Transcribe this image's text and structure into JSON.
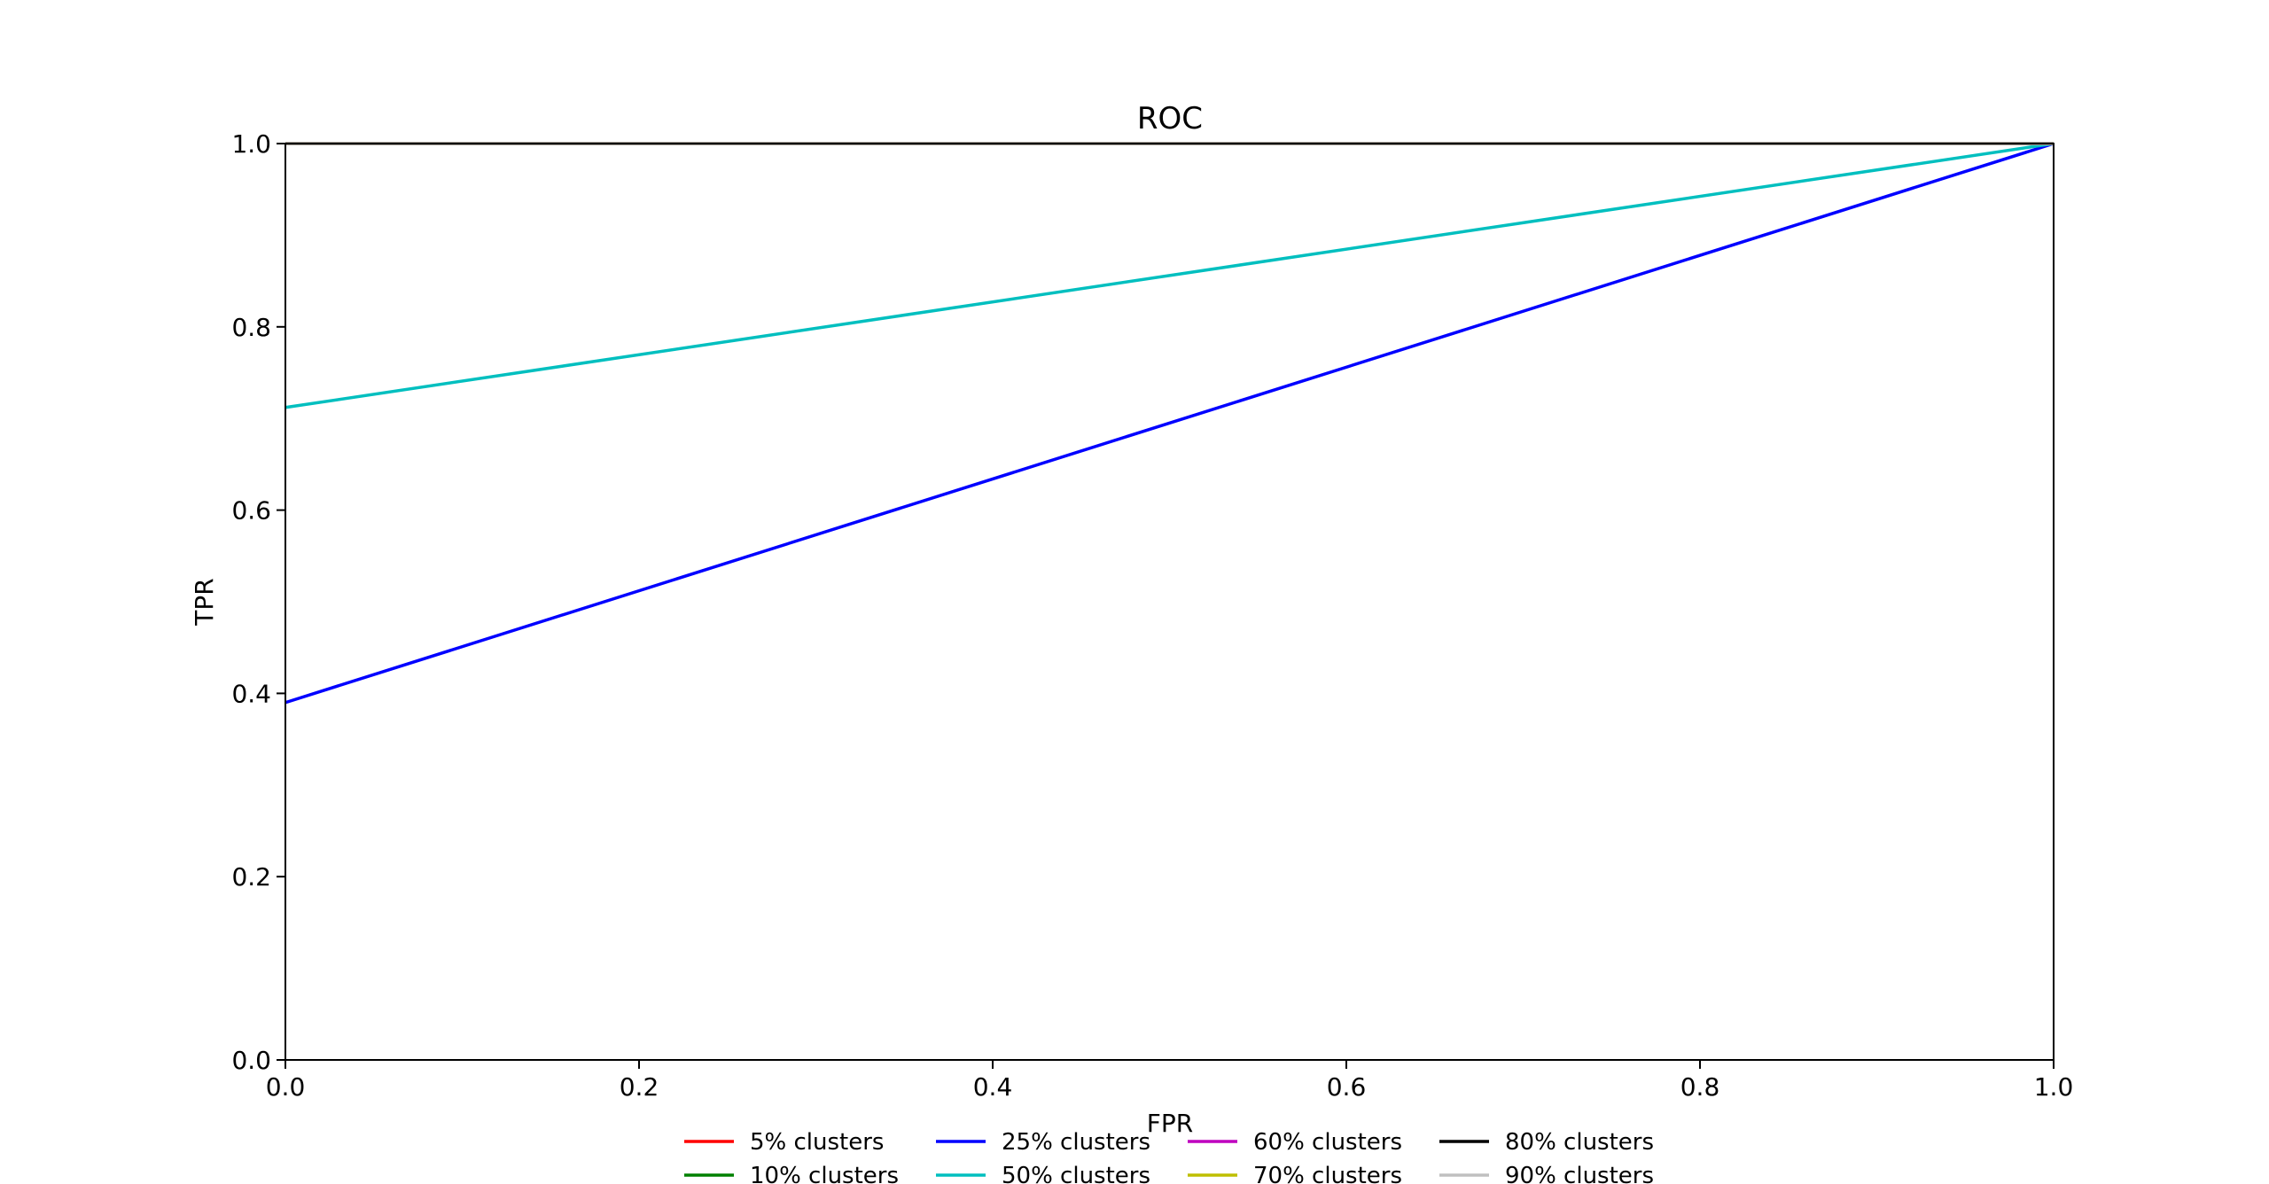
{
  "chart_data": {
    "type": "line",
    "title": "ROC",
    "xlabel": "FPR",
    "ylabel": "TPR",
    "xlim": [
      0.0,
      1.0
    ],
    "ylim": [
      0.0,
      1.0
    ],
    "xticks": [
      "0.0",
      "0.2",
      "0.4",
      "0.6",
      "0.8",
      "1.0"
    ],
    "yticks": [
      "0.0",
      "0.2",
      "0.4",
      "0.6",
      "0.8",
      "1.0"
    ],
    "grid": false,
    "legend_position": "bottom-center",
    "series": [
      {
        "name": "5% clusters",
        "color": "#ff0000",
        "x": [
          0.0,
          1.0
        ],
        "y": [
          1.0,
          1.0
        ]
      },
      {
        "name": "10% clusters",
        "color": "#008000",
        "x": [
          0.0,
          1.0
        ],
        "y": [
          1.0,
          1.0
        ]
      },
      {
        "name": "25% clusters",
        "color": "#0000ff",
        "x": [
          0.0,
          1.0
        ],
        "y": [
          0.39,
          1.0
        ]
      },
      {
        "name": "50% clusters",
        "color": "#00bfbf",
        "x": [
          0.0,
          1.0
        ],
        "y": [
          0.712,
          1.0
        ]
      },
      {
        "name": "60% clusters",
        "color": "#bf00bf",
        "x": [
          0.0,
          1.0
        ],
        "y": [
          1.0,
          1.0
        ]
      },
      {
        "name": "70% clusters",
        "color": "#bfbf00",
        "x": [
          0.0,
          1.0
        ],
        "y": [
          1.0,
          1.0
        ]
      },
      {
        "name": "80% clusters",
        "color": "#000000",
        "x": [
          0.0,
          1.0
        ],
        "y": [
          1.0,
          1.0
        ]
      },
      {
        "name": "90% clusters",
        "color": "#c0c0c0",
        "x": [
          0.0,
          1.0
        ],
        "y": [
          1.0,
          1.0
        ]
      }
    ]
  }
}
